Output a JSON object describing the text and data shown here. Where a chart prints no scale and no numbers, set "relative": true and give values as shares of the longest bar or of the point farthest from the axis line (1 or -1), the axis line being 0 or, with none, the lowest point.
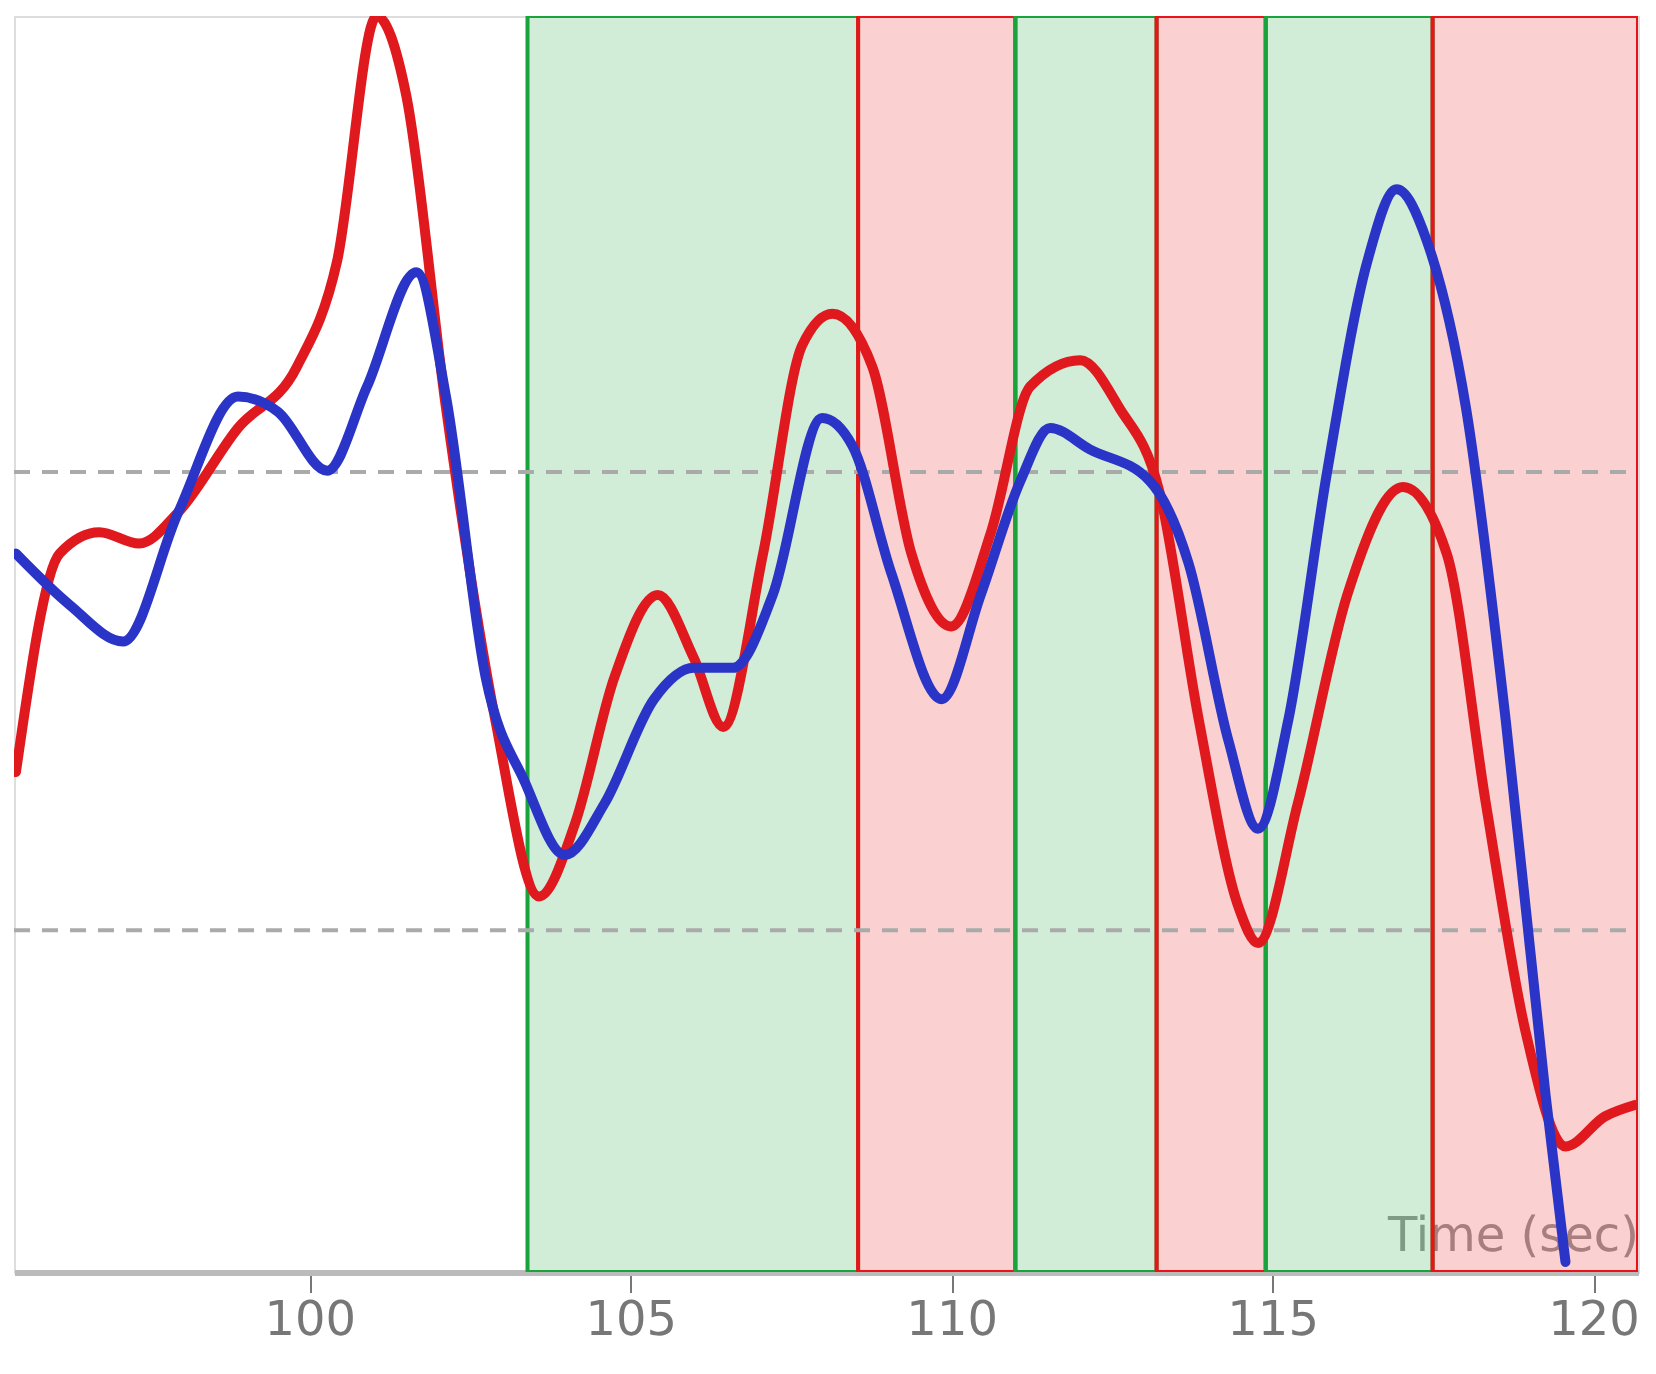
{
  "chart_data": {
    "type": "line",
    "relative": true,
    "xlabel": "Time (sec)",
    "xlim": [
      95.4,
      120.7
    ],
    "xticks": [
      100,
      105,
      110,
      115,
      120
    ],
    "line_style": "solid",
    "marker": "none",
    "series": [
      {
        "color": "#e0191e",
        "x": [
          95.43,
          96.11,
          96.73,
          97.35,
          97.96,
          98.89,
          99.81,
          100.43,
          101.05,
          101.51,
          102.13,
          102.9,
          103.58,
          104.14,
          104.75,
          105.43,
          105.99,
          106.45,
          107.07,
          107.68,
          108.15,
          108.77,
          109.38,
          110.0,
          110.62,
          111.23,
          112.01,
          112.62,
          113.24,
          113.86,
          114.48,
          114.78,
          115.4,
          116.17,
          117.04,
          117.72,
          118.33,
          118.95,
          119.57,
          120.19,
          120.65
        ],
        "values": [
          0.398,
          0.572,
          0.589,
          0.58,
          0.605,
          0.672,
          0.721,
          0.804,
          1.0,
          0.937,
          0.688,
          0.439,
          0.299,
          0.357,
          0.473,
          0.539,
          0.489,
          0.434,
          0.572,
          0.738,
          0.763,
          0.721,
          0.572,
          0.514,
          0.589,
          0.705,
          0.726,
          0.688,
          0.622,
          0.439,
          0.29,
          0.262,
          0.373,
          0.539,
          0.625,
          0.572,
          0.373,
          0.191,
          0.1,
          0.124,
          0.133
        ]
      },
      {
        "color": "#2a35c8",
        "x": [
          95.43,
          96.27,
          97.1,
          97.96,
          98.89,
          99.51,
          100.28,
          100.9,
          101.67,
          102.13,
          102.75,
          103.36,
          103.98,
          104.6,
          105.37,
          105.99,
          106.6,
          107.22,
          107.99,
          108.46,
          109.07,
          109.85,
          110.46,
          111.08,
          111.54,
          112.16,
          113.09,
          113.7,
          114.32,
          114.78,
          115.25,
          115.86,
          116.48,
          116.94,
          117.41,
          118.02,
          118.64,
          119.26,
          119.57
        ],
        "values": [
          0.572,
          0.531,
          0.502,
          0.605,
          0.697,
          0.685,
          0.638,
          0.705,
          0.796,
          0.697,
          0.473,
          0.39,
          0.332,
          0.373,
          0.456,
          0.481,
          0.481,
          0.539,
          0.68,
          0.658,
          0.556,
          0.456,
          0.539,
          0.63,
          0.672,
          0.655,
          0.63,
          0.564,
          0.423,
          0.353,
          0.439,
          0.638,
          0.804,
          0.862,
          0.821,
          0.688,
          0.439,
          0.141,
          0.008
        ]
      }
    ],
    "ref_lines": [
      {
        "axis": "y",
        "value": 0.637,
        "color": "#aaaaaa",
        "line_style": "dashed"
      },
      {
        "axis": "y",
        "value": 0.272,
        "color": "#aaaaaa",
        "line_style": "dashed"
      }
    ],
    "bands": [
      {
        "axis": "x",
        "from": 103.4,
        "to": 108.55,
        "color": "#1aa33a"
      },
      {
        "axis": "x",
        "from": 108.55,
        "to": 111.0,
        "color": "#e8141a"
      },
      {
        "axis": "x",
        "from": 111.0,
        "to": 113.2,
        "color": "#1aa33a"
      },
      {
        "axis": "x",
        "from": 113.2,
        "to": 114.9,
        "color": "#e8141a"
      },
      {
        "axis": "x",
        "from": 114.9,
        "to": 117.5,
        "color": "#1aa33a"
      },
      {
        "axis": "x",
        "from": 117.5,
        "to": 120.7,
        "color": "#e8141a"
      }
    ]
  }
}
